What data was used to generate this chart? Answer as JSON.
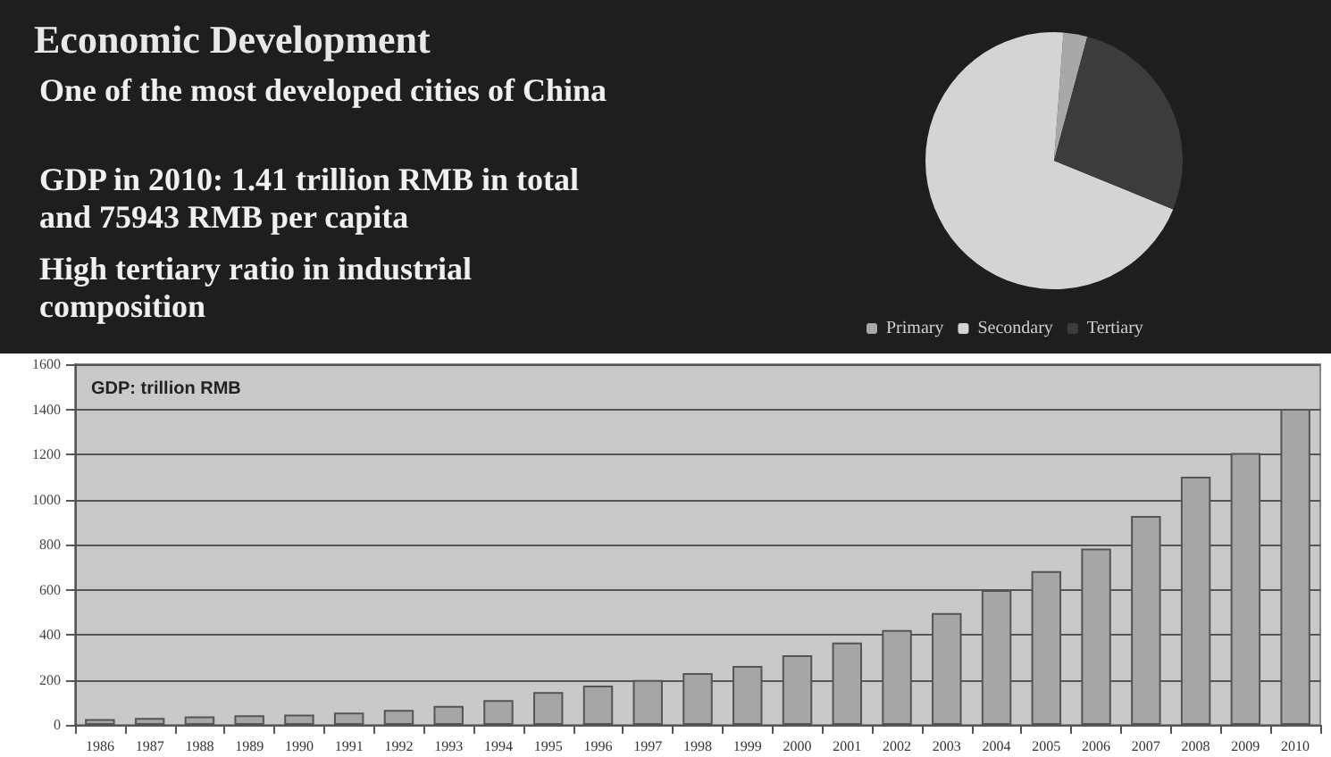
{
  "chart_data": [
    {
      "type": "pie",
      "title": "Economic Development",
      "annotations": [
        "One of the most developed cities of China",
        "GDP in 2010: 1.41 trillion RMB in total and 75943 RMB per capita",
        "High tertiary ratio in industrial composition"
      ],
      "categories": [
        "Primary",
        "Secondary",
        "Tertiary"
      ],
      "values": [
        3,
        70,
        27
      ],
      "colors": [
        "#a8a8a8",
        "#d4d4d4",
        "#3c3c3c"
      ],
      "legend": "bottom"
    },
    {
      "type": "bar",
      "title": "GDP: trillion RMB",
      "categories": [
        "1986",
        "1987",
        "1988",
        "1989",
        "1990",
        "1991",
        "1992",
        "1993",
        "1994",
        "1995",
        "1996",
        "1997",
        "1998",
        "1999",
        "2000",
        "2001",
        "2002",
        "2003",
        "2004",
        "2005",
        "2006",
        "2007",
        "2008",
        "2009",
        "2010"
      ],
      "values": [
        26,
        31,
        38,
        43,
        46,
        54,
        66,
        84,
        110,
        146,
        174,
        199,
        230,
        261,
        309,
        365,
        421,
        496,
        598,
        682,
        782,
        927,
        1101,
        1206,
        1402
      ],
      "color": "#a6a6a6",
      "ylim": [
        0,
        1600
      ],
      "yticks": [
        0,
        200,
        400,
        600,
        800,
        1000,
        1200,
        1400,
        1600
      ],
      "grid": "y"
    }
  ]
}
